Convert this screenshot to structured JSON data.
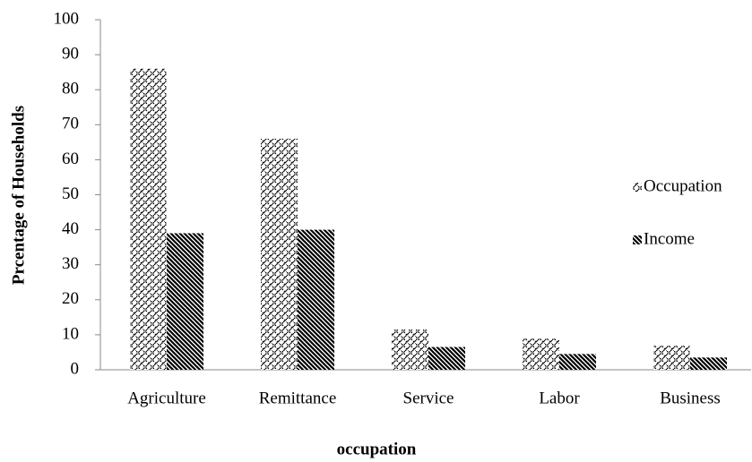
{
  "chart_data": {
    "type": "bar",
    "xlabel": "occupation",
    "ylabel": "Prcentage  of Households",
    "categories": [
      "Agriculture",
      "Remittance",
      "Service",
      "Labor",
      "Business"
    ],
    "series": [
      {
        "name": "Occupation",
        "color": "#000000",
        "values": [
          86,
          66,
          11.5,
          9,
          7
        ]
      },
      {
        "name": "Income",
        "color": "#000000",
        "values": [
          39,
          40,
          6.5,
          4.5,
          3.5
        ]
      }
    ],
    "ylim": [
      0,
      100
    ],
    "yticks": [
      0,
      10,
      20,
      30,
      40,
      50,
      60,
      70,
      80,
      90,
      100
    ],
    "legend": "right"
  }
}
